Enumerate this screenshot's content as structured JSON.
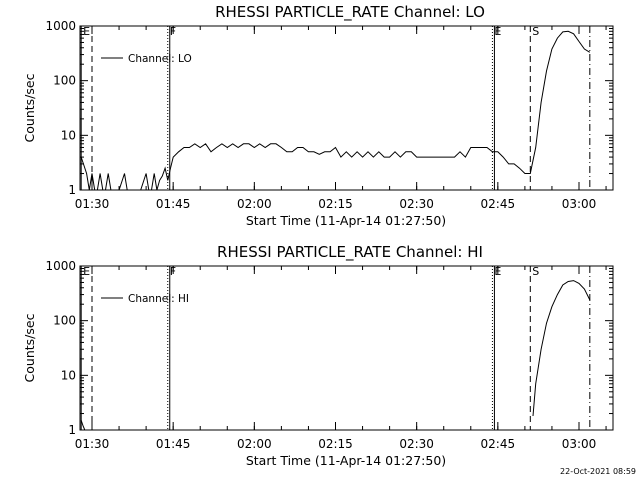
{
  "colors": {
    "background": "#ffffff",
    "foreground": "#000000"
  },
  "timestamp": "22-Oct-2021 08:59",
  "chart_data": [
    {
      "type": "line",
      "title": "RHESSI PARTICLE_RATE Channel: LO",
      "xlabel": "Start Time (11-Apr-14 01:27:50)",
      "ylabel": "Counts/sec",
      "y_scale": "log",
      "ylim": [
        1,
        1000
      ],
      "y_ticks": [
        "1",
        "10",
        "100",
        "1000"
      ],
      "x_ticks": [
        "01:30",
        "01:45",
        "02:00",
        "02:15",
        "02:30",
        "02:45",
        "03:00"
      ],
      "legend": "Channel: LO",
      "legend_placement": "top-left",
      "flags": [
        {
          "label": "E",
          "time": "01:28",
          "style": "solid"
        },
        {
          "label": "",
          "time": "01:30",
          "style": "dashed"
        },
        {
          "label": "F",
          "time": "01:44",
          "style": "dotted"
        },
        {
          "label": "",
          "time": "01:44",
          "style": "solid"
        },
        {
          "label": "E",
          "time": "02:44",
          "style": "dotted"
        },
        {
          "label": "",
          "time": "02:44",
          "style": "solid"
        },
        {
          "label": "S",
          "time": "02:51",
          "style": "dashed"
        },
        {
          "label": "",
          "time": "03:02",
          "style": "dashdot"
        }
      ],
      "series": [
        {
          "name": "Channel: LO",
          "x": [
            "01:28",
            "01:29",
            "01:29:30",
            "01:30",
            "01:30:30",
            "01:31",
            "01:31:30",
            "01:32",
            "01:32:30",
            "01:33",
            "01:33:30",
            "01:34",
            "01:35",
            "01:36",
            "01:36:30",
            "01:37",
            "01:38",
            "01:39",
            "01:40",
            "01:40:30",
            "01:41",
            "01:41:30",
            "01:42",
            "01:42:30",
            "01:43",
            "01:43:30",
            "01:44",
            "01:44:30",
            "01:45",
            "01:46",
            "01:47",
            "01:48",
            "01:49",
            "01:50",
            "01:51",
            "01:52",
            "01:53",
            "01:54",
            "01:55",
            "01:56",
            "01:57",
            "01:58",
            "01:59",
            "02:00",
            "02:01",
            "02:02",
            "02:03",
            "02:04",
            "02:05",
            "02:06",
            "02:07",
            "02:08",
            "02:09",
            "02:10",
            "02:11",
            "02:12",
            "02:13",
            "02:14",
            "02:15",
            "02:16",
            "02:17",
            "02:18",
            "02:19",
            "02:20",
            "02:21",
            "02:22",
            "02:23",
            "02:24",
            "02:25",
            "02:26",
            "02:27",
            "02:28",
            "02:29",
            "02:30",
            "02:31",
            "02:32",
            "02:33",
            "02:34",
            "02:35",
            "02:36",
            "02:37",
            "02:38",
            "02:39",
            "02:40",
            "02:41",
            "02:42",
            "02:43",
            "02:44",
            "02:45",
            "02:46",
            "02:47",
            "02:48",
            "02:49",
            "02:50",
            "02:51",
            "02:52",
            "02:53",
            "02:54",
            "02:55",
            "02:56",
            "02:57",
            "02:58",
            "02:59",
            "03:00",
            "03:01",
            "03:02"
          ],
          "values": [
            4,
            2,
            1,
            2,
            1,
            1,
            2,
            1,
            1,
            2,
            1,
            1,
            1,
            2,
            1,
            1,
            1,
            1,
            2,
            1,
            1,
            2,
            1,
            1.5,
            1.8,
            2.5,
            1.5,
            2.5,
            4,
            5,
            6,
            6,
            7,
            6,
            7,
            5,
            6,
            7,
            6,
            7,
            6,
            7,
            7,
            6,
            7,
            6,
            7,
            7,
            6,
            5,
            5,
            6,
            6,
            5,
            5,
            4.5,
            5,
            5,
            6,
            4,
            5,
            4,
            5,
            4,
            5,
            4,
            5,
            4,
            4,
            5,
            4,
            5,
            5,
            4,
            4,
            4,
            4,
            4,
            4,
            4,
            4,
            5,
            4,
            6,
            6,
            6,
            6,
            5,
            5,
            4,
            3,
            3,
            2.5,
            2,
            2,
            6,
            40,
            150,
            380,
            600,
            780,
            800,
            720,
            520,
            380,
            330
          ],
          "unit": "Counts/sec"
        }
      ]
    },
    {
      "type": "line",
      "title": "RHESSI PARTICLE_RATE Channel: HI",
      "xlabel": "Start Time (11-Apr-14 01:27:50)",
      "ylabel": "Counts/sec",
      "y_scale": "log",
      "ylim": [
        1,
        1000
      ],
      "y_ticks": [
        "1",
        "10",
        "100",
        "1000"
      ],
      "x_ticks": [
        "01:30",
        "01:45",
        "02:00",
        "02:15",
        "02:30",
        "02:45",
        "03:00"
      ],
      "legend": "Channel: HI",
      "legend_placement": "top-left",
      "flags": [
        {
          "label": "E",
          "time": "01:28",
          "style": "solid"
        },
        {
          "label": "",
          "time": "01:30",
          "style": "dashed"
        },
        {
          "label": "F",
          "time": "01:44",
          "style": "dotted"
        },
        {
          "label": "",
          "time": "01:44",
          "style": "solid"
        },
        {
          "label": "E",
          "time": "02:44",
          "style": "dotted"
        },
        {
          "label": "",
          "time": "02:44",
          "style": "solid"
        },
        {
          "label": "S",
          "time": "02:51",
          "style": "dashed"
        },
        {
          "label": "",
          "time": "03:02",
          "style": "dashdot"
        }
      ],
      "series": [
        {
          "name": "Channel: HI",
          "x": [
            "01:28",
            "01:28:20",
            "01:28:40",
            "02:51:30",
            "02:52",
            "02:53",
            "02:54",
            "02:55",
            "02:56",
            "02:57",
            "02:58",
            "02:59",
            "03:00",
            "03:01",
            "03:02"
          ],
          "values": [
            1.5,
            1.2,
            1,
            1.8,
            7,
            30,
            90,
            180,
            300,
            450,
            520,
            540,
            480,
            380,
            240
          ],
          "unit": "Counts/sec"
        }
      ]
    }
  ]
}
